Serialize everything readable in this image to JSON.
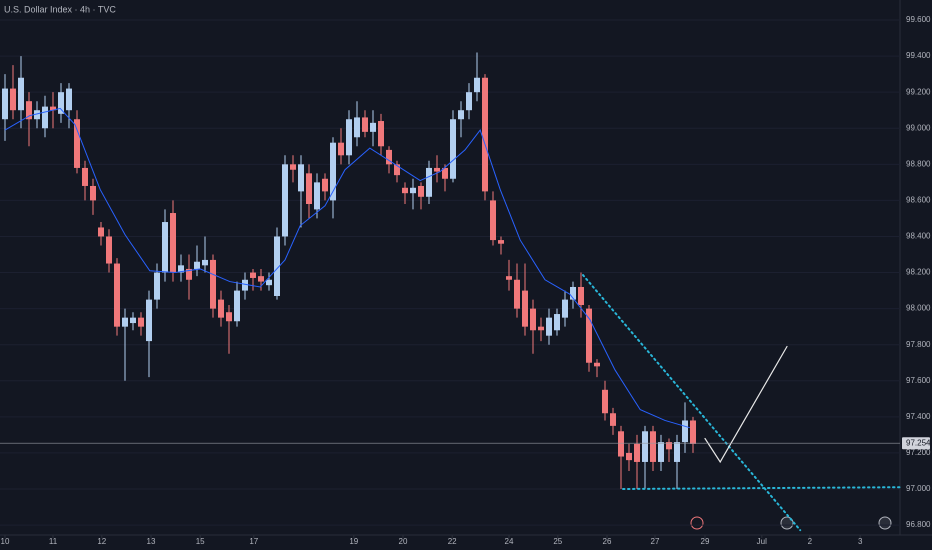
{
  "chart_data": {
    "type": "candlestick",
    "title": "U.S. Dollar Index · 4h · TVC",
    "up_color": "#b2cff0",
    "down_color": "#f0787b",
    "candles": [
      {
        "o": 99.05,
        "h": 99.3,
        "l": 98.93,
        "c": 99.22
      },
      {
        "o": 99.22,
        "h": 99.35,
        "l": 99.05,
        "c": 99.1
      },
      {
        "o": 99.1,
        "h": 99.4,
        "l": 99.0,
        "c": 99.28
      },
      {
        "o": 99.15,
        "h": 99.2,
        "l": 98.9,
        "c": 99.05
      },
      {
        "o": 99.05,
        "h": 99.15,
        "l": 99.0,
        "c": 99.1
      },
      {
        "o": 99.0,
        "h": 99.18,
        "l": 98.95,
        "c": 99.12
      },
      {
        "o": 99.12,
        "h": 99.2,
        "l": 99.0,
        "c": 99.1
      },
      {
        "o": 99.08,
        "h": 99.25,
        "l": 99.03,
        "c": 99.2
      },
      {
        "o": 99.1,
        "h": 99.25,
        "l": 99.0,
        "c": 99.22
      },
      {
        "o": 99.05,
        "h": 99.1,
        "l": 98.75,
        "c": 98.78
      },
      {
        "o": 98.78,
        "h": 98.82,
        "l": 98.6,
        "c": 98.68
      },
      {
        "o": 98.68,
        "h": 98.72,
        "l": 98.52,
        "c": 98.6
      },
      {
        "o": 98.45,
        "h": 98.48,
        "l": 98.35,
        "c": 98.4
      },
      {
        "o": 98.4,
        "h": 98.44,
        "l": 98.2,
        "c": 98.25
      },
      {
        "o": 98.25,
        "h": 98.28,
        "l": 97.85,
        "c": 97.9
      },
      {
        "o": 97.9,
        "h": 98.0,
        "l": 97.6,
        "c": 97.95
      },
      {
        "o": 97.92,
        "h": 97.98,
        "l": 97.88,
        "c": 97.95
      },
      {
        "o": 97.95,
        "h": 97.98,
        "l": 97.85,
        "c": 97.9
      },
      {
        "o": 97.82,
        "h": 98.1,
        "l": 97.62,
        "c": 98.05
      },
      {
        "o": 98.05,
        "h": 98.25,
        "l": 98.0,
        "c": 98.2
      },
      {
        "o": 98.2,
        "h": 98.55,
        "l": 98.15,
        "c": 98.48
      },
      {
        "o": 98.53,
        "h": 98.6,
        "l": 98.15,
        "c": 98.2
      },
      {
        "o": 98.2,
        "h": 98.3,
        "l": 98.15,
        "c": 98.24
      },
      {
        "o": 98.22,
        "h": 98.3,
        "l": 98.05,
        "c": 98.16
      },
      {
        "o": 98.22,
        "h": 98.35,
        "l": 98.18,
        "c": 98.26
      },
      {
        "o": 98.24,
        "h": 98.4,
        "l": 98.2,
        "c": 98.27
      },
      {
        "o": 98.27,
        "h": 98.3,
        "l": 97.95,
        "c": 98.0
      },
      {
        "o": 98.05,
        "h": 98.1,
        "l": 97.9,
        "c": 97.95
      },
      {
        "o": 97.98,
        "h": 98.02,
        "l": 97.75,
        "c": 97.93
      },
      {
        "o": 97.93,
        "h": 98.15,
        "l": 97.9,
        "c": 98.1
      },
      {
        "o": 98.1,
        "h": 98.2,
        "l": 98.05,
        "c": 98.16
      },
      {
        "o": 98.2,
        "h": 98.22,
        "l": 98.1,
        "c": 98.17
      },
      {
        "o": 98.18,
        "h": 98.22,
        "l": 98.1,
        "c": 98.15
      },
      {
        "o": 98.13,
        "h": 98.2,
        "l": 98.1,
        "c": 98.16
      },
      {
        "o": 98.07,
        "h": 98.45,
        "l": 98.05,
        "c": 98.4
      },
      {
        "o": 98.4,
        "h": 98.85,
        "l": 98.35,
        "c": 98.8
      },
      {
        "o": 98.8,
        "h": 98.85,
        "l": 98.7,
        "c": 98.77
      },
      {
        "o": 98.65,
        "h": 98.85,
        "l": 98.45,
        "c": 98.8
      },
      {
        "o": 98.75,
        "h": 98.8,
        "l": 98.5,
        "c": 98.58
      },
      {
        "o": 98.55,
        "h": 98.75,
        "l": 98.5,
        "c": 98.7
      },
      {
        "o": 98.72,
        "h": 98.75,
        "l": 98.6,
        "c": 98.65
      },
      {
        "o": 98.6,
        "h": 98.95,
        "l": 98.5,
        "c": 98.92
      },
      {
        "o": 98.92,
        "h": 99.0,
        "l": 98.8,
        "c": 98.85
      },
      {
        "o": 98.85,
        "h": 99.1,
        "l": 98.8,
        "c": 99.05
      },
      {
        "o": 98.95,
        "h": 99.15,
        "l": 98.9,
        "c": 99.06
      },
      {
        "o": 99.06,
        "h": 99.1,
        "l": 98.95,
        "c": 98.98
      },
      {
        "o": 98.98,
        "h": 99.1,
        "l": 98.9,
        "c": 99.03
      },
      {
        "o": 99.04,
        "h": 99.08,
        "l": 98.85,
        "c": 98.9
      },
      {
        "o": 98.88,
        "h": 98.9,
        "l": 98.75,
        "c": 98.8
      },
      {
        "o": 98.8,
        "h": 98.82,
        "l": 98.7,
        "c": 98.74
      },
      {
        "o": 98.67,
        "h": 98.7,
        "l": 98.58,
        "c": 98.64
      },
      {
        "o": 98.64,
        "h": 98.72,
        "l": 98.55,
        "c": 98.67
      },
      {
        "o": 98.68,
        "h": 98.7,
        "l": 98.55,
        "c": 98.62
      },
      {
        "o": 98.62,
        "h": 98.82,
        "l": 98.58,
        "c": 98.78
      },
      {
        "o": 98.78,
        "h": 98.85,
        "l": 98.7,
        "c": 98.76
      },
      {
        "o": 98.78,
        "h": 98.8,
        "l": 98.65,
        "c": 98.72
      },
      {
        "o": 98.72,
        "h": 99.1,
        "l": 98.7,
        "c": 99.05
      },
      {
        "o": 99.05,
        "h": 99.15,
        "l": 98.95,
        "c": 99.1
      },
      {
        "o": 99.1,
        "h": 99.25,
        "l": 99.05,
        "c": 99.2
      },
      {
        "o": 99.2,
        "h": 99.42,
        "l": 99.15,
        "c": 99.28
      },
      {
        "o": 99.28,
        "h": 99.3,
        "l": 98.6,
        "c": 98.65
      },
      {
        "o": 98.6,
        "h": 98.65,
        "l": 98.35,
        "c": 98.38
      },
      {
        "o": 98.38,
        "h": 98.4,
        "l": 98.3,
        "c": 98.36
      },
      {
        "o": 98.18,
        "h": 98.27,
        "l": 98.1,
        "c": 98.16
      },
      {
        "o": 98.16,
        "h": 98.25,
        "l": 97.95,
        "c": 98.0
      },
      {
        "o": 98.1,
        "h": 98.25,
        "l": 97.85,
        "c": 97.9
      },
      {
        "o": 98.0,
        "h": 98.05,
        "l": 97.75,
        "c": 97.88
      },
      {
        "o": 97.9,
        "h": 97.95,
        "l": 97.82,
        "c": 97.88
      },
      {
        "o": 97.85,
        "h": 98.0,
        "l": 97.8,
        "c": 97.95
      },
      {
        "o": 97.88,
        "h": 98.0,
        "l": 97.85,
        "c": 97.97
      },
      {
        "o": 97.95,
        "h": 98.1,
        "l": 97.9,
        "c": 98.05
      },
      {
        "o": 98.05,
        "h": 98.15,
        "l": 98.0,
        "c": 98.12
      },
      {
        "o": 98.12,
        "h": 98.2,
        "l": 97.95,
        "c": 98.02
      },
      {
        "o": 98.0,
        "h": 98.02,
        "l": 97.65,
        "c": 97.7
      },
      {
        "o": 97.7,
        "h": 97.72,
        "l": 97.62,
        "c": 97.68
      },
      {
        "o": 97.55,
        "h": 97.6,
        "l": 97.38,
        "c": 97.42
      },
      {
        "o": 97.42,
        "h": 97.45,
        "l": 97.3,
        "c": 97.35
      },
      {
        "o": 97.32,
        "h": 97.35,
        "l": 97.0,
        "c": 97.18
      },
      {
        "o": 97.2,
        "h": 97.25,
        "l": 97.1,
        "c": 97.16
      },
      {
        "o": 97.25,
        "h": 97.3,
        "l": 97.0,
        "c": 97.15
      },
      {
        "o": 97.15,
        "h": 97.35,
        "l": 97.0,
        "c": 97.32
      },
      {
        "o": 97.32,
        "h": 97.35,
        "l": 97.1,
        "c": 97.15
      },
      {
        "o": 97.15,
        "h": 97.3,
        "l": 97.1,
        "c": 97.26
      },
      {
        "o": 97.26,
        "h": 97.28,
        "l": 97.15,
        "c": 97.22
      },
      {
        "o": 97.15,
        "h": 97.3,
        "l": 97.0,
        "c": 97.26
      },
      {
        "o": 97.26,
        "h": 97.48,
        "l": 97.2,
        "c": 97.38
      },
      {
        "o": 97.38,
        "h": 97.4,
        "l": 97.2,
        "c": 97.25
      }
    ],
    "moving_average": {
      "color": "#2962ff",
      "x": [
        0,
        3.1,
        6.9,
        8.75,
        11.9,
        15,
        18.1,
        21.25,
        24.4,
        28.1,
        31.9,
        35,
        36.9,
        40,
        42.5,
        45.6,
        48.75,
        51.9,
        54.4,
        57.5,
        59.4,
        61.9,
        64.4,
        67.5,
        70.6,
        73.1,
        76.25,
        79.4,
        82.5,
        85.6
      ],
      "values": [
        98.99,
        99.07,
        99.11,
        99.02,
        98.66,
        98.41,
        98.21,
        98.2,
        98.22,
        98.15,
        98.12,
        98.27,
        98.46,
        98.57,
        98.77,
        98.89,
        98.8,
        98.71,
        98.76,
        98.88,
        98.99,
        98.66,
        98.38,
        98.16,
        98.08,
        97.94,
        97.66,
        97.44,
        97.38,
        97.34
      ]
    },
    "drawings": [
      {
        "color": "#29b6d8",
        "style": "dotted",
        "x": [
          72.25,
          99.4
        ],
        "y": [
          98.186,
          96.772
        ]
      },
      {
        "color": "#29b6d8",
        "style": "dotted",
        "x": [
          77.25,
          111.9
        ],
        "y": [
          97.0,
          97.01
        ]
      },
      {
        "color": "#e8e8e8",
        "style": "solid",
        "x": [
          87.5,
          89.4,
          97.75
        ],
        "y": [
          97.28,
          97.15,
          97.79
        ]
      }
    ],
    "current_price": 97.254,
    "xlim": [
      -0.625,
      111.875
    ],
    "xticks": [
      {
        "value": 0,
        "label": "10"
      },
      {
        "value": 6,
        "label": "11"
      },
      {
        "value": 12.1,
        "label": "12"
      },
      {
        "value": 18.25,
        "label": "13"
      },
      {
        "value": 24.4,
        "label": "15"
      },
      {
        "value": 31.1,
        "label": "17"
      },
      {
        "value": 43.6,
        "label": "19"
      },
      {
        "value": 49.75,
        "label": "20"
      },
      {
        "value": 55.9,
        "label": "22"
      },
      {
        "value": 63,
        "label": "24"
      },
      {
        "value": 69.1,
        "label": "25"
      },
      {
        "value": 75.25,
        "label": "26"
      },
      {
        "value": 81.25,
        "label": "27"
      },
      {
        "value": 87.5,
        "label": "29"
      },
      {
        "value": 94.6,
        "label": "Jul"
      },
      {
        "value": 100.6,
        "label": "2"
      },
      {
        "value": 106.9,
        "label": "3"
      }
    ],
    "ylim": [
      96.745,
      99.711
    ],
    "yticks": [
      {
        "value": 96.8,
        "label": "96.800"
      },
      {
        "value": 97.0,
        "label": "97.000"
      },
      {
        "value": 97.2,
        "label": "97.200"
      },
      {
        "value": 97.4,
        "label": "97.400"
      },
      {
        "value": 97.6,
        "label": "97.600"
      },
      {
        "value": 97.8,
        "label": "97.800"
      },
      {
        "value": 98.0,
        "label": "98.000"
      },
      {
        "value": 98.2,
        "label": "98.200"
      },
      {
        "value": 98.4,
        "label": "98.400"
      },
      {
        "value": 98.6,
        "label": "98.600"
      },
      {
        "value": 98.8,
        "label": "98.800"
      },
      {
        "value": 99.0,
        "label": "99.000"
      },
      {
        "value": 99.2,
        "label": "99.200"
      },
      {
        "value": 99.4,
        "label": "99.400"
      },
      {
        "value": 99.6,
        "label": "99.600"
      }
    ]
  }
}
